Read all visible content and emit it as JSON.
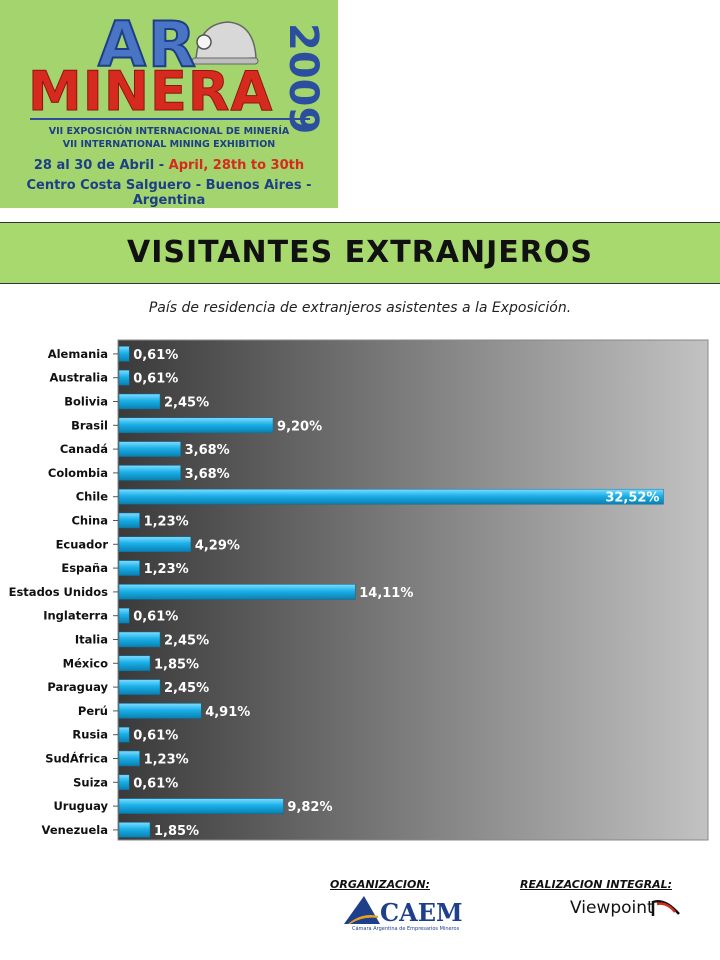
{
  "logo": {
    "brand_top": "AR",
    "brand_main": "MINERA",
    "year": "2009",
    "edition_es": "VII EXPOSICIÓN INTERNACIONAL DE MINERÍA",
    "edition_en": "VII INTERNATIONAL MINING EXHIBITION",
    "dates_es": "28 al 30 de Abril - ",
    "dates_en": "April, 28th to 30th",
    "venue": "Centro Costa Salguero - Buenos Aires - Argentina"
  },
  "banner": {
    "title": "VISITANTES EXTRANJEROS"
  },
  "subtitle": "País de residencia de extranjeros asistentes a la Exposición.",
  "colors": {
    "logo_bg": "#a3d46e",
    "banner_bg": "#a8d96f",
    "bar": "#1ab0e8",
    "plot_gradient_start": "#3a3a3a",
    "plot_gradient_end": "#c2c2c2"
  },
  "chart_data": {
    "type": "bar",
    "orientation": "horizontal",
    "categories": [
      "Alemania",
      "Australia",
      "Bolivia",
      "Brasil",
      "Canadá",
      "Colombia",
      "Chile",
      "China",
      "Ecuador",
      "España",
      "Estados Unidos",
      "Inglaterra",
      "Italia",
      "México",
      "Paraguay",
      "Perú",
      "Rusia",
      "SudÁfrica",
      "Suiza",
      "Uruguay",
      "Venezuela"
    ],
    "values": [
      0.61,
      0.61,
      2.45,
      9.2,
      3.68,
      3.68,
      32.52,
      1.23,
      4.29,
      1.23,
      14.11,
      0.61,
      2.45,
      1.85,
      2.45,
      4.91,
      0.61,
      1.23,
      0.61,
      9.82,
      1.85
    ],
    "value_labels": [
      "0,61%",
      "0,61%",
      "2,45%",
      "9,20%",
      "3,68%",
      "3,68%",
      "32,52%",
      "1,23%",
      "4,29%",
      "1,23%",
      "14,11%",
      "0,61%",
      "2,45%",
      "1,85%",
      "2,45%",
      "4,91%",
      "0,61%",
      "1,23%",
      "0,61%",
      "9,82%",
      "1,85%"
    ],
    "xlim": [
      0,
      35
    ],
    "grid": false,
    "legend": "none"
  },
  "footer": {
    "organizacion_label": "ORGANIZACION:",
    "realizacion_label": "REALIZACION INTEGRAL:",
    "caem_name": "CAEM",
    "caem_sub": "Cámara Argentina de Empresarios Mineros",
    "viewpoint_name": "Viewpoint"
  }
}
